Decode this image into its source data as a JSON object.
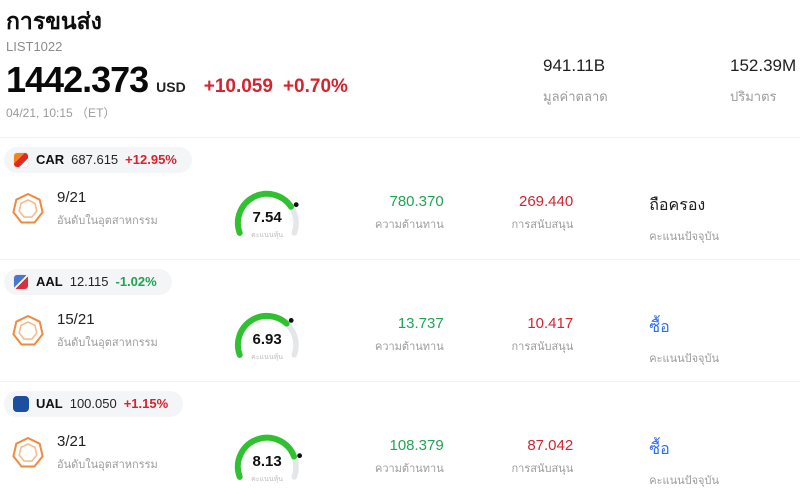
{
  "colors": {
    "up": "#d5232f",
    "down": "#21a453",
    "buy": "#2f6ff0",
    "gauge_green": "#2fc12f",
    "gauge_rest": "#e4e6e8"
  },
  "header": {
    "title": "การขนส่ง",
    "list_id": "LIST1022",
    "price": "1442.373",
    "currency": "USD",
    "change": "+10.059",
    "change_pct": "+0.70%",
    "datetime": "04/21, 10:15 （ET）",
    "stats": [
      {
        "value": "941.11B",
        "label": "มูลค่าตลาด"
      },
      {
        "value": "152.39M",
        "label": "ปริมาตร"
      }
    ]
  },
  "labels": {
    "rank": "อันดับในอุตสาหกรรม",
    "score": "คะแนนหุ้น",
    "resistance": "ความต้านทาน",
    "support": "การสนับสนุน",
    "signal": "คะแนนปัจจุบัน"
  },
  "rows": [
    {
      "ticker": "CAR",
      "price": "687.615",
      "change_pct": "+12.95%",
      "change_dir": "up",
      "rank": "9/21",
      "score": "7.54",
      "score_value": 7.54,
      "resistance": "780.370",
      "support": "269.440",
      "signal": "ถือครอง",
      "signal_type": "hold"
    },
    {
      "ticker": "AAL",
      "price": "12.115",
      "change_pct": "-1.02%",
      "change_dir": "down",
      "rank": "15/21",
      "score": "6.93",
      "score_value": 6.93,
      "resistance": "13.737",
      "support": "10.417",
      "signal": "ซื้อ",
      "signal_type": "buy"
    },
    {
      "ticker": "UAL",
      "price": "100.050",
      "change_pct": "+1.15%",
      "change_dir": "up",
      "rank": "3/21",
      "score": "8.13",
      "score_value": 8.13,
      "resistance": "108.379",
      "support": "87.042",
      "signal": "ซื้อ",
      "signal_type": "buy"
    }
  ]
}
